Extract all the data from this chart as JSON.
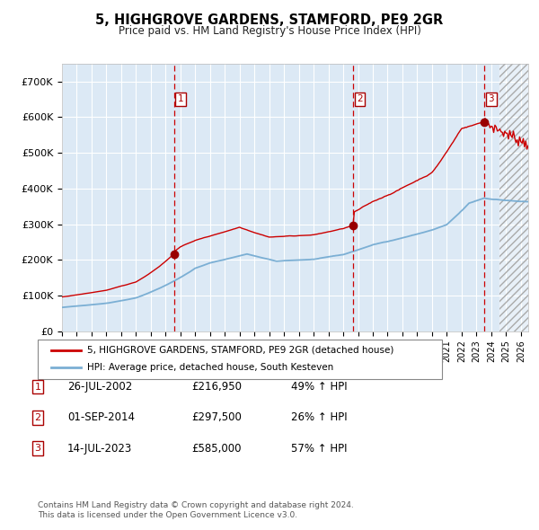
{
  "title": "5, HIGHGROVE GARDENS, STAMFORD, PE9 2GR",
  "subtitle": "Price paid vs. HM Land Registry's House Price Index (HPI)",
  "xlim_start": 1995.0,
  "xlim_end": 2026.5,
  "ylim": [
    0,
    750000
  ],
  "yticks": [
    0,
    100000,
    200000,
    300000,
    400000,
    500000,
    600000,
    700000
  ],
  "ytick_labels": [
    "£0",
    "£100K",
    "£200K",
    "£300K",
    "£400K",
    "£500K",
    "£600K",
    "£700K"
  ],
  "plot_bg_color": "#dce9f5",
  "hpi_line_color": "#7bafd4",
  "price_line_color": "#cc0000",
  "sale_marker_color": "#990000",
  "dashed_line_color": "#cc0000",
  "legend_box_label1": "5, HIGHGROVE GARDENS, STAMFORD, PE9 2GR (detached house)",
  "legend_box_label2": "HPI: Average price, detached house, South Kesteven",
  "sale_events": [
    {
      "num": 1,
      "date_str": "26-JUL-2002",
      "date_x": 2002.57,
      "price": 216950,
      "price_str": "£216,950",
      "pct": "49%",
      "dir": "↑"
    },
    {
      "num": 2,
      "date_str": "01-SEP-2014",
      "date_x": 2014.67,
      "price": 297500,
      "price_str": "£297,500",
      "pct": "26%",
      "dir": "↑"
    },
    {
      "num": 3,
      "date_str": "14-JUL-2023",
      "date_x": 2023.54,
      "price": 585000,
      "price_str": "£585,000",
      "pct": "57%",
      "dir": "↑"
    }
  ],
  "footer_line1": "Contains HM Land Registry data © Crown copyright and database right 2024.",
  "footer_line2": "This data is licensed under the Open Government Licence v3.0.",
  "hatch_start": 2024.58
}
